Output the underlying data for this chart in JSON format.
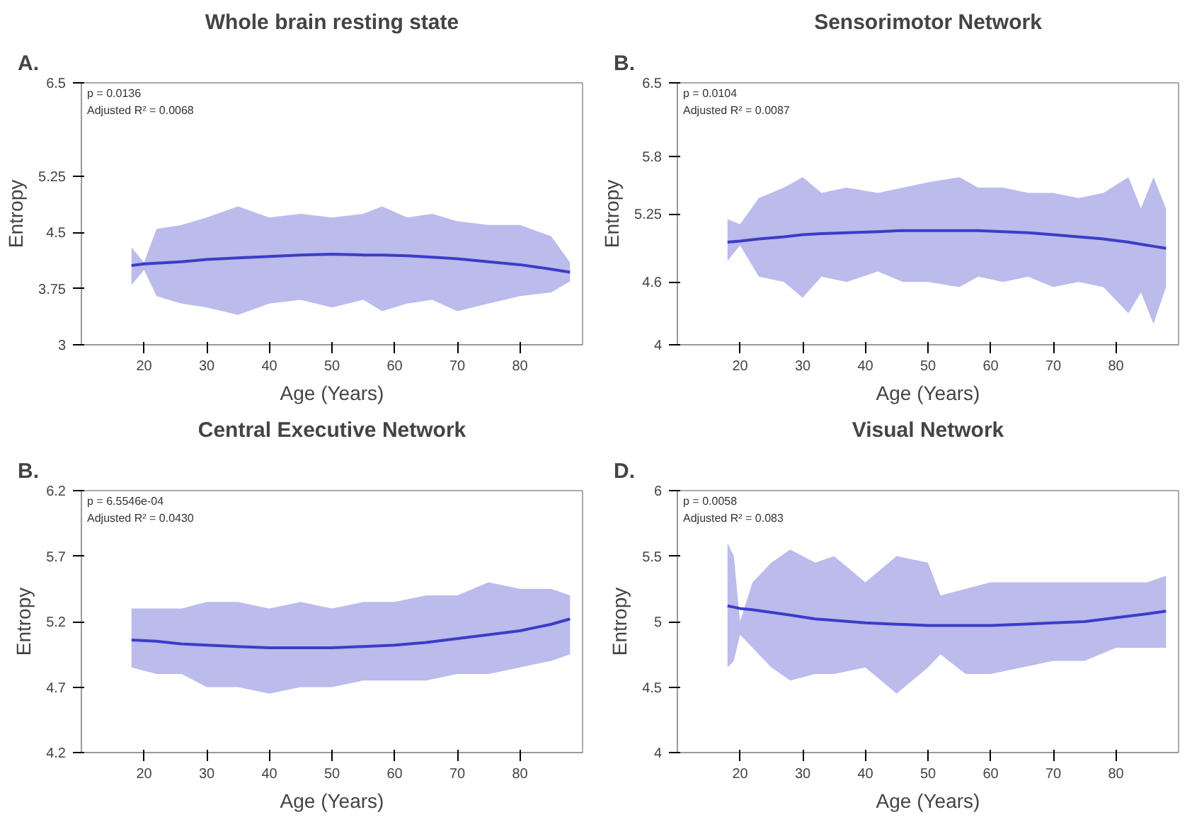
{
  "chart_data": [
    {
      "type": "line",
      "title": "Whole brain resting state",
      "xlabel": "Age (Years)",
      "ylabel": "Entropy",
      "annotations": [
        "A.",
        "p = 0.0136",
        "Adjusted R² = 0.0068"
      ],
      "xlim": [
        10,
        90
      ],
      "xticks": [
        20,
        30,
        40,
        50,
        60,
        70,
        80
      ],
      "ylim": [
        3,
        6.5
      ],
      "yticks": [
        3,
        3.75,
        4.5,
        5.25,
        6.5
      ],
      "grid": false,
      "marker": "none",
      "line_style": "solid",
      "series": [
        {
          "color": "#3c3cc8",
          "x": [
            18,
            20,
            22,
            26,
            30,
            35,
            40,
            45,
            50,
            55,
            58,
            62,
            66,
            70,
            75,
            80,
            85,
            88
          ],
          "values": [
            4.06,
            4.08,
            4.09,
            4.11,
            4.14,
            4.16,
            4.18,
            4.2,
            4.21,
            4.2,
            4.2,
            4.19,
            4.17,
            4.15,
            4.11,
            4.07,
            4.01,
            3.97
          ],
          "upper": [
            4.3,
            4.1,
            4.55,
            4.6,
            4.7,
            4.85,
            4.7,
            4.75,
            4.7,
            4.75,
            4.85,
            4.7,
            4.75,
            4.65,
            4.6,
            4.6,
            4.45,
            4.1
          ],
          "lower": [
            3.8,
            4.0,
            3.65,
            3.55,
            3.5,
            3.4,
            3.55,
            3.6,
            3.5,
            3.6,
            3.45,
            3.55,
            3.6,
            3.45,
            3.55,
            3.65,
            3.7,
            3.85
          ]
        }
      ]
    },
    {
      "type": "line",
      "title": "Sensorimotor Network",
      "xlabel": "Age (Years)",
      "ylabel": "Entropy",
      "annotations": [
        "B.",
        "p = 0.0104",
        "Adjusted R² = 0.0087"
      ],
      "xlim": [
        10,
        90
      ],
      "xticks": [
        20,
        30,
        40,
        50,
        60,
        70,
        80
      ],
      "ylim": [
        4,
        6.5
      ],
      "yticks": [
        4,
        4.6,
        5.25,
        5.8,
        6.5
      ],
      "grid": false,
      "marker": "none",
      "line_style": "solid",
      "series": [
        {
          "color": "#3c3cc8",
          "x": [
            18,
            20,
            23,
            27,
            30,
            33,
            37,
            42,
            46,
            50,
            55,
            58,
            62,
            66,
            70,
            74,
            78,
            82,
            84,
            86,
            88
          ],
          "values": [
            4.98,
            4.99,
            5.01,
            5.03,
            5.05,
            5.06,
            5.07,
            5.08,
            5.09,
            5.09,
            5.09,
            5.09,
            5.08,
            5.07,
            5.05,
            5.03,
            5.01,
            4.98,
            4.96,
            4.94,
            4.92
          ],
          "upper": [
            5.2,
            5.15,
            5.4,
            5.5,
            5.6,
            5.45,
            5.5,
            5.45,
            5.5,
            5.55,
            5.6,
            5.5,
            5.5,
            5.45,
            5.45,
            5.4,
            5.45,
            5.6,
            5.3,
            5.6,
            5.3
          ],
          "lower": [
            4.8,
            4.95,
            4.65,
            4.6,
            4.45,
            4.65,
            4.6,
            4.7,
            4.6,
            4.6,
            4.55,
            4.65,
            4.6,
            4.65,
            4.55,
            4.6,
            4.55,
            4.3,
            4.5,
            4.2,
            4.55
          ]
        }
      ]
    },
    {
      "type": "line",
      "title": "Central Executive Network",
      "xlabel": "Age (Years)",
      "ylabel": "Entropy",
      "annotations": [
        "B.",
        "p = 6.5546e-04",
        "Adjusted R² = 0.0430"
      ],
      "xlim": [
        10,
        90
      ],
      "xticks": [
        20,
        30,
        40,
        50,
        60,
        70,
        80
      ],
      "ylim": [
        4.2,
        6.2
      ],
      "yticks": [
        4.2,
        4.7,
        5.2,
        5.7,
        6.2
      ],
      "grid": false,
      "marker": "none",
      "line_style": "solid",
      "series": [
        {
          "color": "#3c3cc8",
          "x": [
            18,
            22,
            26,
            30,
            35,
            40,
            45,
            50,
            55,
            60,
            65,
            70,
            75,
            80,
            85,
            88
          ],
          "values": [
            5.06,
            5.05,
            5.03,
            5.02,
            5.01,
            5.0,
            5.0,
            5.0,
            5.01,
            5.02,
            5.04,
            5.07,
            5.1,
            5.13,
            5.18,
            5.22
          ],
          "upper": [
            5.3,
            5.3,
            5.3,
            5.35,
            5.35,
            5.3,
            5.35,
            5.3,
            5.35,
            5.35,
            5.4,
            5.4,
            5.5,
            5.45,
            5.45,
            5.4
          ],
          "lower": [
            4.85,
            4.8,
            4.8,
            4.7,
            4.7,
            4.65,
            4.7,
            4.7,
            4.75,
            4.75,
            4.75,
            4.8,
            4.8,
            4.85,
            4.9,
            4.95
          ]
        }
      ]
    },
    {
      "type": "line",
      "title": "Visual Network",
      "xlabel": "Age (Years)",
      "ylabel": "Entropy",
      "annotations": [
        "D.",
        "p = 0.0058",
        "Adjusted R² = 0.083"
      ],
      "xlim": [
        10,
        90
      ],
      "xticks": [
        20,
        30,
        40,
        50,
        60,
        70,
        80
      ],
      "ylim": [
        4,
        6
      ],
      "yticks": [
        4,
        4.5,
        5,
        5.5,
        6
      ],
      "grid": false,
      "marker": "none",
      "line_style": "solid",
      "series": [
        {
          "color": "#3c3cc8",
          "x": [
            18,
            19,
            20,
            22,
            25,
            28,
            32,
            35,
            40,
            45,
            50,
            52,
            56,
            60,
            65,
            70,
            75,
            80,
            85,
            88
          ],
          "values": [
            5.12,
            5.11,
            5.1,
            5.09,
            5.07,
            5.05,
            5.02,
            5.01,
            4.99,
            4.98,
            4.97,
            4.97,
            4.97,
            4.97,
            4.98,
            4.99,
            5.0,
            5.03,
            5.06,
            5.08
          ],
          "upper": [
            5.6,
            5.5,
            5.0,
            5.3,
            5.45,
            5.55,
            5.45,
            5.5,
            5.3,
            5.5,
            5.45,
            5.2,
            5.25,
            5.3,
            5.3,
            5.3,
            5.3,
            5.3,
            5.3,
            5.35
          ],
          "lower": [
            4.65,
            4.7,
            4.9,
            4.8,
            4.65,
            4.55,
            4.6,
            4.6,
            4.65,
            4.45,
            4.65,
            4.75,
            4.6,
            4.6,
            4.65,
            4.7,
            4.7,
            4.8,
            4.8,
            4.8
          ]
        }
      ]
    }
  ]
}
